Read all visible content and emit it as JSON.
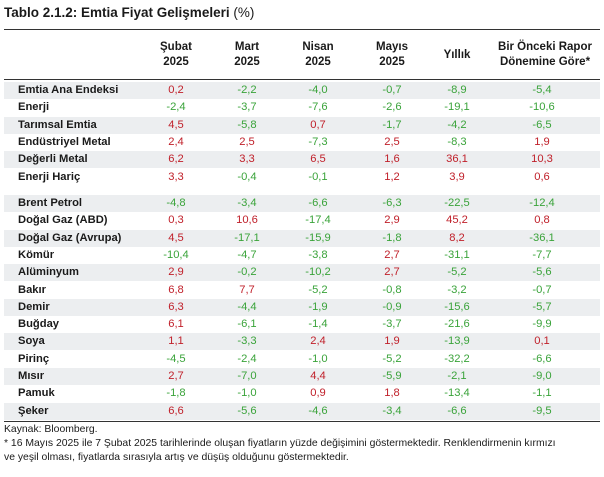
{
  "title": {
    "main": "Tablo 2.1.2: Emtia Fiyat Gelişmeleri",
    "unit": "(%)"
  },
  "headers": [
    [
      "Şubat",
      "2025"
    ],
    [
      "Mart",
      "2025"
    ],
    [
      "Nisan",
      "2025"
    ],
    [
      "Mayıs",
      "2025"
    ],
    [
      "Yıllık"
    ],
    [
      "Bir Önceki Rapor",
      "Dönemine Göre*"
    ]
  ],
  "colors": {
    "increase": "#c0202a",
    "decrease": "#3aa33a",
    "shade": "#eceef0"
  },
  "group1": [
    {
      "label": "Emtia Ana Endeksi",
      "values": [
        "0,2",
        "-2,2",
        "-4,0",
        "-0,7",
        "-8,9",
        "-5,4"
      ]
    },
    {
      "label": "Enerji",
      "values": [
        "-2,4",
        "-3,7",
        "-7,6",
        "-2,6",
        "-19,1",
        "-10,6"
      ]
    },
    {
      "label": "Tarımsal Emtia",
      "values": [
        "4,5",
        "-5,8",
        "0,7",
        "-1,7",
        "-4,2",
        "-6,5"
      ]
    },
    {
      "label": "Endüstriyel Metal",
      "values": [
        "2,4",
        "2,5",
        "-7,3",
        "2,5",
        "-8,3",
        "1,9"
      ]
    },
    {
      "label": "Değerli Metal",
      "values": [
        "6,2",
        "3,3",
        "6,5",
        "1,6",
        "36,1",
        "10,3"
      ]
    },
    {
      "label": "Enerji Hariç",
      "values": [
        "3,3",
        "-0,4",
        "-0,1",
        "1,2",
        "3,9",
        "0,6"
      ]
    }
  ],
  "group2": [
    {
      "label": "Brent Petrol",
      "values": [
        "-4,8",
        "-3,4",
        "-6,6",
        "-6,3",
        "-22,5",
        "-12,4"
      ]
    },
    {
      "label": "Doğal Gaz (ABD)",
      "values": [
        "0,3",
        "10,6",
        "-17,4",
        "2,9",
        "45,2",
        "0,8"
      ]
    },
    {
      "label": "Doğal Gaz (Avrupa)",
      "values": [
        "4,5",
        "-17,1",
        "-15,9",
        "-1,8",
        "8,2",
        "-36,1"
      ]
    },
    {
      "label": "Kömür",
      "values": [
        "-10,4",
        "-4,7",
        "-3,8",
        "2,7",
        "-31,1",
        "-7,7"
      ]
    },
    {
      "label": "Alüminyum",
      "values": [
        "2,9",
        "-0,2",
        "-10,2",
        "2,7",
        "-5,2",
        "-5,6"
      ]
    },
    {
      "label": "Bakır",
      "values": [
        "6,8",
        "7,7",
        "-5,2",
        "-0,8",
        "-3,2",
        "-0,7"
      ]
    },
    {
      "label": "Demir",
      "values": [
        "6,3",
        "-4,4",
        "-1,9",
        "-0,9",
        "-15,6",
        "-5,7"
      ]
    },
    {
      "label": "Buğday",
      "values": [
        "6,1",
        "-6,1",
        "-1,4",
        "-3,7",
        "-21,6",
        "-9,9"
      ]
    },
    {
      "label": "Soya",
      "values": [
        "1,1",
        "-3,3",
        "2,4",
        "1,9",
        "-13,9",
        "0,1"
      ]
    },
    {
      "label": "Pirinç",
      "values": [
        "-4,5",
        "-2,4",
        "-1,0",
        "-5,2",
        "-32,2",
        "-6,6"
      ]
    },
    {
      "label": "Mısır",
      "values": [
        "2,7",
        "-7,0",
        "4,4",
        "-5,9",
        "-2,1",
        "-9,0"
      ]
    },
    {
      "label": "Pamuk",
      "values": [
        "-1,8",
        "-1,0",
        "0,9",
        "1,8",
        "-13,4",
        "-1,1"
      ]
    },
    {
      "label": "Şeker",
      "values": [
        "6,6",
        "-5,6",
        "-4,6",
        "-3,4",
        "-6,6",
        "-9,5"
      ]
    }
  ],
  "footer": {
    "source": "Kaynak: Bloomberg.",
    "note_line1": "* 16 Mayıs 2025 ile 7 Şubat 2025 tarihlerinde oluşan fiyatların yüzde değişimini göstermektedir. Renklendirmenin kırmızı",
    "note_line2": "ve yeşil olması, fiyatlarda sırasıyla artış ve düşüş olduğunu göstermektedir."
  }
}
